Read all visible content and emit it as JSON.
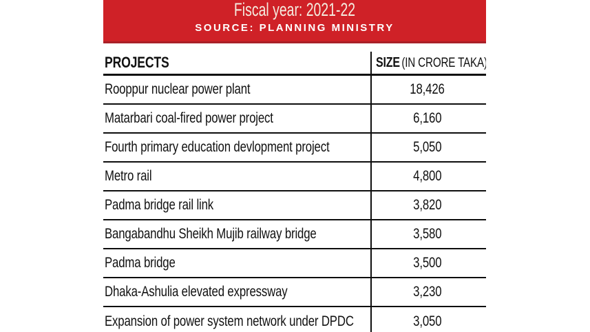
{
  "banner": {
    "title": "Fiscal year: 2021-22",
    "source": "SOURCE: PLANNING MINISTRY"
  },
  "colors": {
    "banner_bg": "#CF2127",
    "banner_bottom_edge": "#A92028",
    "banner_title_text": "#F4ECDF",
    "banner_source_text": "#FFFFFF",
    "table_line": "#0D0D0D",
    "text": "#111111",
    "page_bg": "#FFFFFF"
  },
  "table": {
    "header": {
      "projects_label": "PROJECTS",
      "size_label": "SIZE",
      "size_unit_label": "(IN CRORE TAKA)"
    },
    "rows": [
      {
        "project": "Rooppur nuclear power plant",
        "size": "18,426"
      },
      {
        "project": "Matarbari coal-fired power project",
        "size": "6,160"
      },
      {
        "project": "Fourth primary education devlopment project",
        "size": "5,050"
      },
      {
        "project": "Metro rail",
        "size": "4,800"
      },
      {
        "project": "Padma bridge rail link",
        "size": "3,820"
      },
      {
        "project": "Bangabandhu Sheikh Mujib railway bridge",
        "size": "3,580"
      },
      {
        "project": "Padma bridge",
        "size": "3,500"
      },
      {
        "project": "Dhaka-Ashulia elevated expressway",
        "size": "3,230"
      },
      {
        "project": "Expansion of power system network under DPDC",
        "size": "3,050"
      }
    ]
  },
  "chart_data": {
    "type": "table",
    "title": "Fiscal year: 2021-22",
    "source": "SOURCE: PLANNING MINISTRY",
    "columns": [
      "PROJECTS",
      "SIZE (IN CRORE TAKA)"
    ],
    "unit": "crore taka",
    "rows": [
      [
        "Rooppur nuclear power plant",
        18426
      ],
      [
        "Matarbari coal-fired power project",
        6160
      ],
      [
        "Fourth primary education devlopment project",
        5050
      ],
      [
        "Metro rail",
        4800
      ],
      [
        "Padma bridge rail link",
        3820
      ],
      [
        "Bangabandhu Sheikh Mujib railway bridge",
        3580
      ],
      [
        "Padma bridge",
        3500
      ],
      [
        "Dhaka-Ashulia elevated expressway",
        3230
      ],
      [
        "Expansion of power system network under DPDC",
        3050
      ]
    ]
  }
}
